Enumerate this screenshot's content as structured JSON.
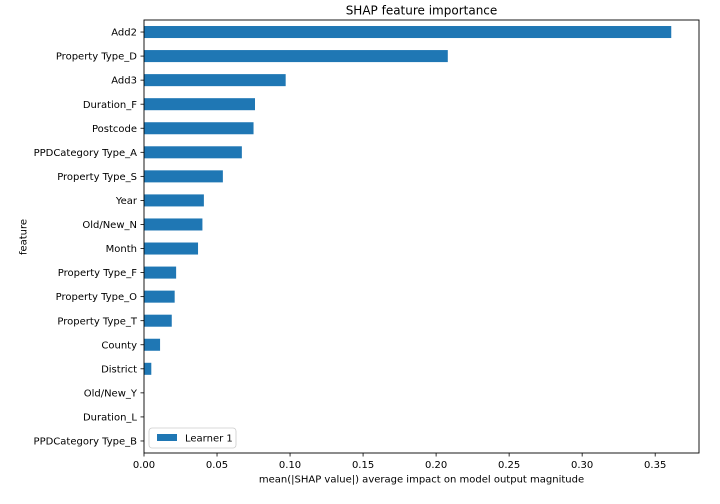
{
  "chart_data": {
    "type": "bar",
    "orientation": "horizontal",
    "title": "SHAP feature importance",
    "xlabel": "mean(|SHAP value|) average impact on model output magnitude",
    "ylabel": "feature",
    "xlim": [
      0,
      0.38
    ],
    "xticks": [
      0.0,
      0.05,
      0.1,
      0.15,
      0.2,
      0.25,
      0.3,
      0.35
    ],
    "xtick_labels": [
      "0.00",
      "0.05",
      "0.10",
      "0.15",
      "0.20",
      "0.25",
      "0.30",
      "0.35"
    ],
    "categories": [
      "Add2",
      "Property Type_D",
      "Add3",
      "Duration_F",
      "Postcode",
      "PPDCategory Type_A",
      "Property Type_S",
      "Year",
      "Old/New_N",
      "Month",
      "Property Type_F",
      "Property Type_O",
      "Property Type_T",
      "County",
      "District",
      "Old/New_Y",
      "Duration_L",
      "PPDCategory Type_B"
    ],
    "series": [
      {
        "name": "Learner 1",
        "color": "#1f77b4",
        "values": [
          0.361,
          0.208,
          0.097,
          0.076,
          0.075,
          0.067,
          0.054,
          0.041,
          0.04,
          0.037,
          0.022,
          0.021,
          0.019,
          0.011,
          0.005,
          0.0,
          0.0,
          0.0
        ]
      }
    ],
    "legend_position": "lower-left",
    "grid": false
  }
}
